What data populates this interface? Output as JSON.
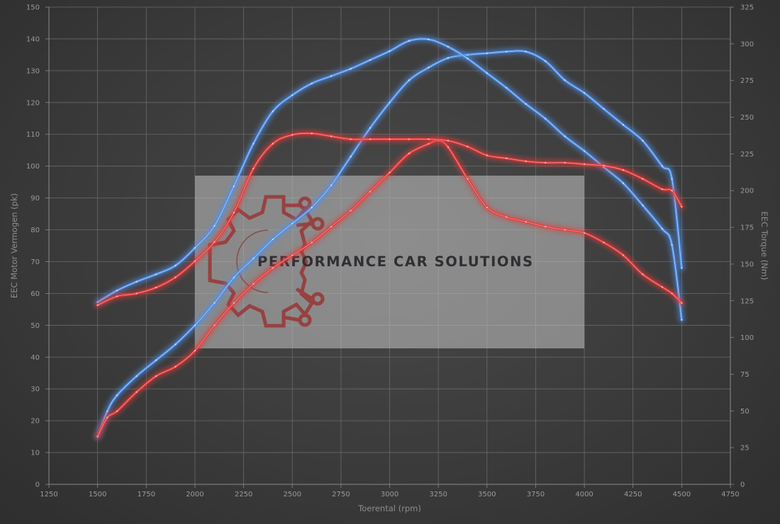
{
  "chart_data": {
    "type": "line",
    "xlabel": "Toerental (rpm)",
    "ylabel_left": "EEC Motor Vermogen (pk)",
    "ylabel_right": "EEC Torque (Nm)",
    "xlim": [
      1250,
      4750
    ],
    "ylim_left": [
      0,
      150
    ],
    "ylim_right": [
      0,
      325
    ],
    "x_ticks": [
      "1250",
      "1500",
      "1750",
      "2000",
      "2250",
      "2500",
      "2750",
      "3000",
      "3250",
      "3500",
      "3750",
      "4000",
      "4250",
      "4500",
      "4750"
    ],
    "y_left_ticks": [
      "0",
      "10",
      "20",
      "30",
      "40",
      "50",
      "60",
      "70",
      "80",
      "90",
      "100",
      "110",
      "120",
      "130",
      "140",
      "150"
    ],
    "y_right_ticks": [
      "0",
      "25",
      "50",
      "75",
      "100",
      "125",
      "150",
      "175",
      "200",
      "225",
      "250",
      "275",
      "300",
      "325"
    ],
    "grid": true,
    "series": [
      {
        "axis": "left",
        "color": "#4f8fe8",
        "points": [
          [
            1500,
            15
          ],
          [
            1550,
            23
          ],
          [
            1600,
            28
          ],
          [
            1700,
            34
          ],
          [
            1800,
            39
          ],
          [
            1900,
            44
          ],
          [
            2000,
            50
          ],
          [
            2100,
            57
          ],
          [
            2200,
            65
          ],
          [
            2300,
            71
          ],
          [
            2400,
            77
          ],
          [
            2500,
            82
          ],
          [
            2600,
            87
          ],
          [
            2700,
            94
          ],
          [
            2800,
            103
          ],
          [
            2900,
            112
          ],
          [
            3000,
            120
          ],
          [
            3100,
            127
          ],
          [
            3200,
            131
          ],
          [
            3300,
            134
          ],
          [
            3400,
            135
          ],
          [
            3500,
            135.5
          ],
          [
            3600,
            136
          ],
          [
            3700,
            136
          ],
          [
            3800,
            133
          ],
          [
            3900,
            127
          ],
          [
            4000,
            123
          ],
          [
            4100,
            118
          ],
          [
            4200,
            113
          ],
          [
            4300,
            108
          ],
          [
            4400,
            100
          ],
          [
            4450,
            96
          ],
          [
            4500,
            68
          ]
        ]
      },
      {
        "axis": "right",
        "color": "#4f8fe8",
        "points": [
          [
            1500,
            124
          ],
          [
            1600,
            132
          ],
          [
            1700,
            138
          ],
          [
            1800,
            143
          ],
          [
            1900,
            149
          ],
          [
            2000,
            161
          ],
          [
            2100,
            176
          ],
          [
            2200,
            203
          ],
          [
            2300,
            232
          ],
          [
            2400,
            254
          ],
          [
            2500,
            265
          ],
          [
            2600,
            273
          ],
          [
            2700,
            278
          ],
          [
            2800,
            283
          ],
          [
            2900,
            289
          ],
          [
            3000,
            295
          ],
          [
            3100,
            302
          ],
          [
            3200,
            303
          ],
          [
            3300,
            298
          ],
          [
            3400,
            290
          ],
          [
            3500,
            280
          ],
          [
            3600,
            270
          ],
          [
            3700,
            259
          ],
          [
            3800,
            249
          ],
          [
            3900,
            237
          ],
          [
            4000,
            227
          ],
          [
            4100,
            216
          ],
          [
            4200,
            205
          ],
          [
            4300,
            190
          ],
          [
            4400,
            174
          ],
          [
            4450,
            163
          ],
          [
            4500,
            112
          ]
        ]
      },
      {
        "axis": "left",
        "color": "#e03a3a",
        "points": [
          [
            1500,
            15
          ],
          [
            1550,
            21
          ],
          [
            1600,
            23
          ],
          [
            1700,
            29
          ],
          [
            1800,
            34
          ],
          [
            1900,
            37
          ],
          [
            2000,
            42
          ],
          [
            2100,
            50
          ],
          [
            2200,
            57
          ],
          [
            2300,
            63
          ],
          [
            2400,
            68
          ],
          [
            2500,
            72
          ],
          [
            2600,
            76
          ],
          [
            2700,
            81
          ],
          [
            2800,
            86
          ],
          [
            2900,
            92
          ],
          [
            3000,
            98
          ],
          [
            3100,
            104
          ],
          [
            3200,
            107
          ],
          [
            3250,
            108
          ],
          [
            3300,
            106
          ],
          [
            3400,
            96
          ],
          [
            3500,
            87
          ],
          [
            3600,
            84
          ],
          [
            3700,
            82.5
          ],
          [
            3800,
            81
          ],
          [
            3900,
            80
          ],
          [
            4000,
            79
          ],
          [
            4100,
            76
          ],
          [
            4200,
            72
          ],
          [
            4300,
            66
          ],
          [
            4400,
            62
          ],
          [
            4450,
            60
          ],
          [
            4500,
            57
          ]
        ]
      },
      {
        "axis": "right",
        "color": "#e03a3a",
        "points": [
          [
            1500,
            122
          ],
          [
            1600,
            128
          ],
          [
            1700,
            130
          ],
          [
            1800,
            134
          ],
          [
            1900,
            141
          ],
          [
            2000,
            152
          ],
          [
            2100,
            165
          ],
          [
            2200,
            185
          ],
          [
            2300,
            215
          ],
          [
            2400,
            232
          ],
          [
            2500,
            238
          ],
          [
            2600,
            239
          ],
          [
            2700,
            237
          ],
          [
            2800,
            235
          ],
          [
            2900,
            235
          ],
          [
            3000,
            235
          ],
          [
            3100,
            235
          ],
          [
            3200,
            235
          ],
          [
            3300,
            234
          ],
          [
            3400,
            230
          ],
          [
            3500,
            224
          ],
          [
            3600,
            222
          ],
          [
            3700,
            220
          ],
          [
            3800,
            219
          ],
          [
            3900,
            219
          ],
          [
            4000,
            218
          ],
          [
            4100,
            217
          ],
          [
            4200,
            214
          ],
          [
            4300,
            208
          ],
          [
            4400,
            201
          ],
          [
            4450,
            200
          ],
          [
            4500,
            189
          ]
        ]
      }
    ]
  },
  "watermark": {
    "text": "PERFORMANCE CAR SOLUTIONS",
    "icon": "gear-circuit-logo"
  }
}
